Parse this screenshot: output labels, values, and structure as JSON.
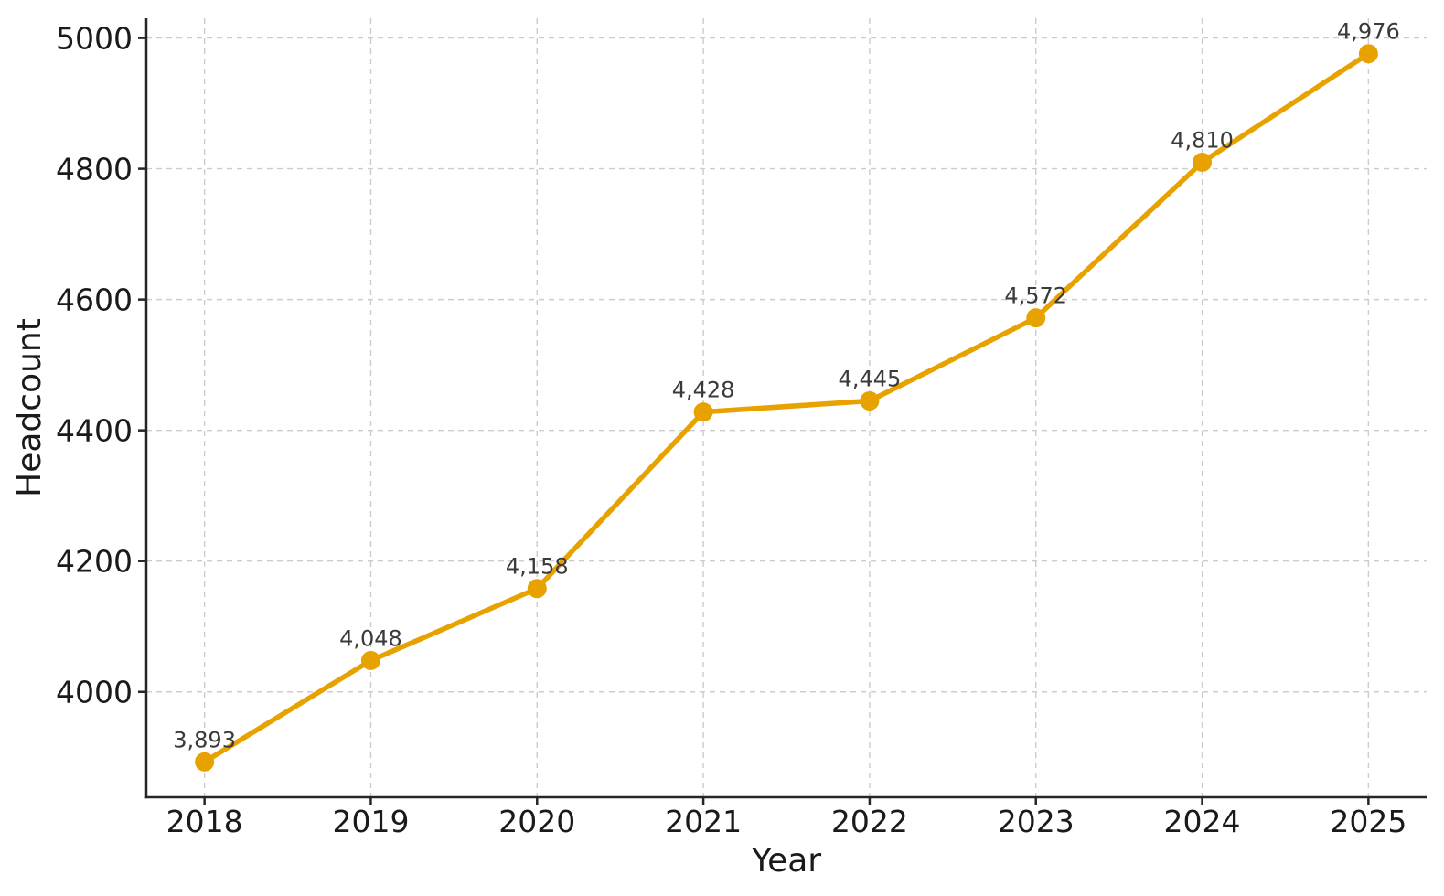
{
  "chart_data": {
    "type": "line",
    "title": "",
    "xlabel": "Year",
    "ylabel": "Headcount",
    "categories": [
      "2018",
      "2019",
      "2020",
      "2021",
      "2022",
      "2023",
      "2024",
      "2025"
    ],
    "x_values": [
      2018,
      2019,
      2020,
      2021,
      2022,
      2023,
      2024,
      2025
    ],
    "series": [
      {
        "name": "Headcount",
        "values": [
          3893,
          4048,
          4158,
          4428,
          4445,
          4572,
          4810,
          4976
        ],
        "point_labels": [
          "3,893",
          "4,048",
          "4,158",
          "4,428",
          "4,445",
          "4,572",
          "4,810",
          "4,976"
        ]
      }
    ],
    "ytick_values": [
      4000,
      4200,
      4400,
      4600,
      4800,
      5000
    ],
    "ytick_labels": [
      "4000",
      "4200",
      "4400",
      "4600",
      "4800",
      "5000"
    ],
    "xlim": [
      2017.65,
      2025.35
    ],
    "ylim": [
      3838.85,
      5030.15
    ],
    "grid": true,
    "grid_style": "dashed",
    "legend": false,
    "marker": "circle",
    "colors": {
      "line": "#E8A200",
      "marker": "#E8A200",
      "grid": "#cccccc",
      "spine": "#262626",
      "tick_text": "#1a1a1a",
      "axis_label_text": "#1a1a1a",
      "point_label_text": "#3a3a3a",
      "background": "#ffffff"
    }
  }
}
